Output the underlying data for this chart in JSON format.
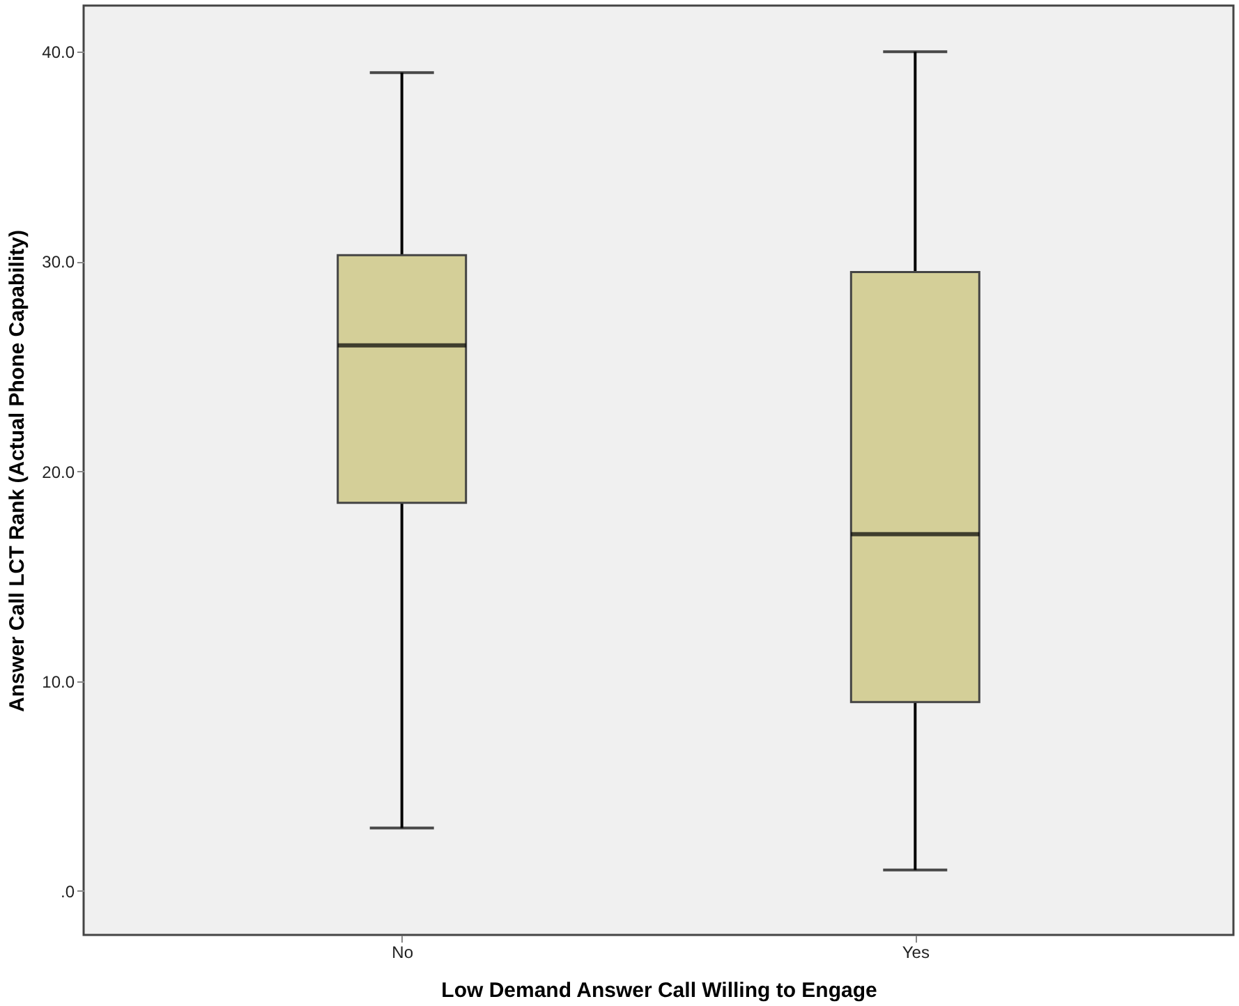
{
  "chart_data": {
    "type": "box",
    "xlabel": "Low Demand Answer Call Willing to Engage",
    "ylabel": "Answer Call LCT Rank (Actual Phone Capability)",
    "categories": [
      "No",
      "Yes"
    ],
    "color": "#d4cf98",
    "boxes": [
      {
        "low": 3,
        "q1": 18.5,
        "median": 26,
        "q3": 30.3,
        "high": 39
      },
      {
        "low": 1,
        "q1": 9,
        "median": 17,
        "q3": 29.5,
        "high": 40
      }
    ],
    "ylim": [
      -2.1,
      42.2
    ],
    "yticks": [
      {
        "value": 0,
        "label": ".0"
      },
      {
        "value": 10,
        "label": "10.0"
      },
      {
        "value": 20,
        "label": "20.0"
      },
      {
        "value": 30,
        "label": "30.0"
      },
      {
        "value": 40,
        "label": "40.0"
      }
    ]
  }
}
